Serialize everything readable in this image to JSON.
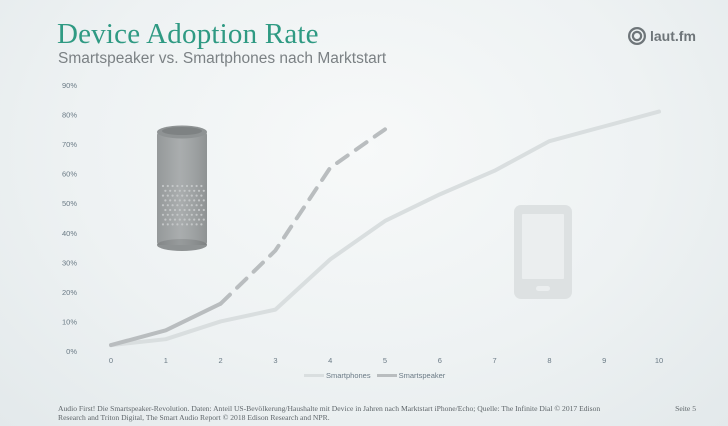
{
  "header": {
    "title": "Device Adoption Rate",
    "subtitle": "Smartspeaker vs. Smartphones nach Marktstart",
    "logo_text": "laut.fm"
  },
  "footer": {
    "source": "Audio First! Die Smartspeaker-Revolution. Daten: Anteil US-Bevölkerung/Haushalte mit Device in Jahren nach Marktstart iPhone/Echo; Quelle: The Infinite Dial © 2017 Edison Research and Triton Digital, The Smart Audio Report © 2018 Edison Research and NPR.",
    "page": "Seite 5"
  },
  "colors": {
    "title": "#2f9a83",
    "smartphones": "#d9dedf",
    "smartspeaker": "#b9bdbf",
    "axis_text": "#6a7a85"
  },
  "icons": [
    "smart-speaker-icon",
    "smartphone-icon",
    "laut-fm-logo-icon"
  ],
  "chart_data": {
    "type": "line",
    "x": [
      0,
      1,
      2,
      3,
      4,
      5,
      6,
      7,
      8,
      9,
      10
    ],
    "xticks": [
      "0",
      "1",
      "2",
      "3",
      "4",
      "5",
      "6",
      "7",
      "8",
      "9",
      "10"
    ],
    "yticks": [
      "0%",
      "10%",
      "20%",
      "30%",
      "40%",
      "50%",
      "60%",
      "70%",
      "80%",
      "90%"
    ],
    "ylim": [
      0,
      90
    ],
    "grid": false,
    "legend_position": "bottom",
    "series": [
      {
        "name": "Smartphones",
        "x": [
          0,
          1,
          2,
          3,
          4,
          5,
          6,
          7,
          8,
          9,
          10
        ],
        "values": [
          2,
          4,
          10,
          14,
          31,
          44,
          53,
          61,
          71,
          76,
          81
        ],
        "style": "solid"
      },
      {
        "name": "Smartspeaker",
        "x": [
          0,
          1,
          2,
          3,
          4,
          5
        ],
        "values": [
          2,
          7,
          16,
          34,
          62,
          75
        ],
        "style": "solid-then-dashed",
        "solid_until_x": 2
      }
    ]
  }
}
